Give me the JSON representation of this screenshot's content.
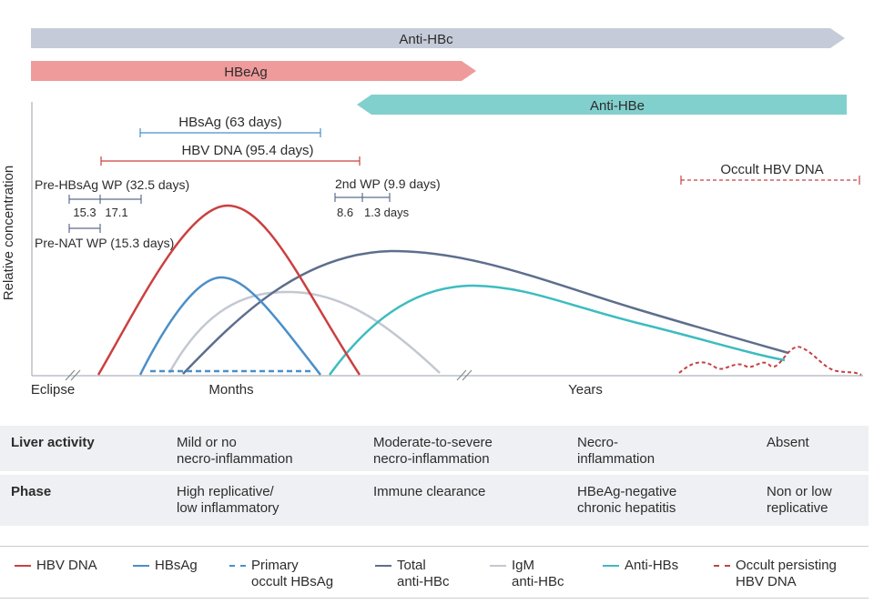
{
  "bars": {
    "anti_hbc": "Anti-HBc",
    "hbeag": "HBeAg",
    "anti_hbe": "Anti-HBe"
  },
  "intervals": {
    "hbsag": "HBsAg (63 days)",
    "hbv_dna": "HBV DNA (95.4 days)",
    "pre_hbsag_wp": "Pre-HBsAg WP (32.5 days)",
    "pre_hbsag_a": "15.3",
    "pre_hbsag_b": "17.1",
    "pre_nat_wp": "Pre-NAT WP (15.3 days)",
    "second_wp": "2nd WP (9.9 days)",
    "second_wp_a": "8.6",
    "second_wp_b": "1.3 days",
    "occult": "Occult HBV DNA"
  },
  "axes": {
    "ylabel": "Relative concentration",
    "x_eclipse": "Eclipse",
    "x_months": "Months",
    "x_years": "Years"
  },
  "table": {
    "liver": {
      "header": "Liver activity",
      "c1": "Mild or no\nnecro-inflammation",
      "c2": "Moderate-to-severe\nnecro-inflammation",
      "c3": "Necro-\ninflammation",
      "c4": "Absent"
    },
    "phase": {
      "header": "Phase",
      "c1": "High replicative/\nlow inflammatory",
      "c2": "Immune clearance",
      "c3": "HBeAg-negative\nchronic hepatitis",
      "c4": "Non or low\nreplicative"
    }
  },
  "legend": {
    "hbv_dna": "HBV DNA",
    "hbsag": "HBsAg",
    "primary_occult": "Primary\noccult HBsAg",
    "total_anti_hbc": "Total\nanti-HBc",
    "igm_anti_hbc": "IgM\nanti-HBc",
    "anti_hbs": "Anti-HBs",
    "occult_persisting": "Occult persisting\nHBV DNA"
  },
  "colors": {
    "hbv_dna": "#cc3f3f",
    "hbsag": "#4a8fc8",
    "total_anti_hbc": "#5d6e8c",
    "igm_anti_hbc": "#c3c8d2",
    "anti_hbs": "#3cbcc0",
    "occult": "#c44242",
    "anti_hbc_bar": "#c5cbd8",
    "hbeag_bar": "#ef9b9b",
    "anti_hbe_bar": "#82d0ce"
  }
}
